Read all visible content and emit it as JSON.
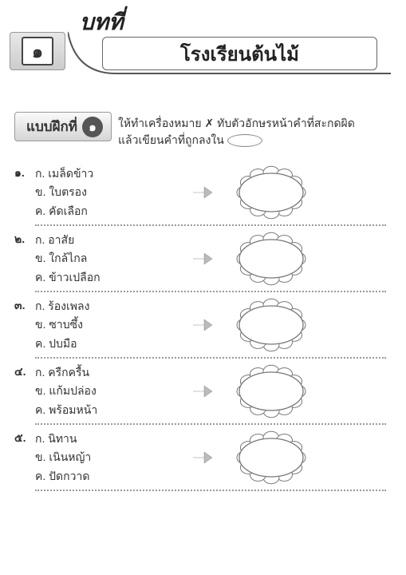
{
  "chapter": {
    "label": "บทที่",
    "number_symbol": "๑",
    "title": "โรงเรียนต้นไม้"
  },
  "exercise": {
    "label": "แบบฝึกที่",
    "number_symbol": "๑",
    "instruction_line1": "ให้ทำเครื่องหมาย ✗ ทับตัวอักษรหน้าคำที่สะกดผิด",
    "instruction_line2": "แล้วเขียนคำที่ถูกลงใน"
  },
  "choice_prefixes": {
    "a": "ก.",
    "b": "ข.",
    "c": "ค."
  },
  "questions": [
    {
      "num": "๑.",
      "a": "เมล็ดข้าว",
      "b": "ใบตรอง",
      "c": "คัดเลือก"
    },
    {
      "num": "๒.",
      "a": "อาสัย",
      "b": "ใกล้ไกล",
      "c": "ข้าวเปลือก"
    },
    {
      "num": "๓.",
      "a": "ร้องเพลง",
      "b": "ซาบซึ้ง",
      "c": "ปบมือ"
    },
    {
      "num": "๔.",
      "a": "ครืกครื้น",
      "b": "แก้มปล่อง",
      "c": "พร้อมหน้า"
    },
    {
      "num": "๕.",
      "a": "นิทาน",
      "b": "เนินหญ้า",
      "c": "ปัดกวาด"
    }
  ],
  "colors": {
    "text": "#333333",
    "border": "#888888",
    "dots": "#999999",
    "arrow": "#bbbbbb",
    "flower_fill": "#ffffff",
    "flower_stroke": "#777777"
  }
}
